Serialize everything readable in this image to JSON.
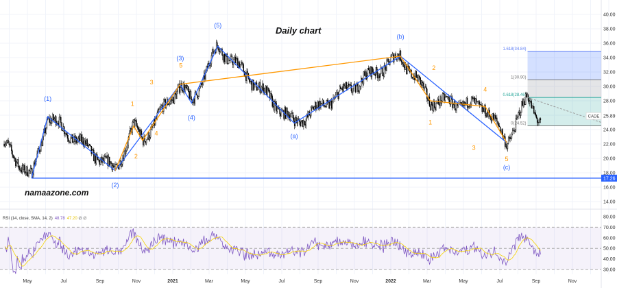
{
  "chart_data": {
    "type": "candlestick",
    "title": "Daily chart",
    "symbol": "CADE",
    "last_price": "25.89",
    "watermark": "namaazone.com",
    "y_ticks": [
      "40.00",
      "38.00",
      "36.00",
      "34.00",
      "32.00",
      "30.00",
      "28.00",
      "24.00",
      "22.00",
      "20.00",
      "18.00",
      "16.00",
      "14.00"
    ],
    "ylim": [
      12.5,
      41
    ],
    "x_ticks": [
      "May",
      "Jul",
      "Sep",
      "Nov",
      "2021",
      "Mar",
      "May",
      "Jul",
      "Sep",
      "Nov",
      "2022",
      "Mar",
      "May",
      "Jul",
      "Sep",
      "Nov"
    ],
    "price_pivots": [
      [
        "2020-03-23",
        22.0
      ],
      [
        "2020-05-08",
        17.3
      ],
      [
        "2020-06-04",
        25.8
      ],
      [
        "2020-09-25",
        18.3
      ],
      [
        "2020-10-26",
        24.5
      ],
      [
        "2020-11-10",
        22.5
      ],
      [
        "2021-01-12",
        30.3
      ],
      [
        "2021-01-31",
        27.7
      ],
      [
        "2021-03-16",
        35.6
      ],
      [
        "2021-07-22",
        24.9
      ],
      [
        "2022-01-16",
        34.2
      ],
      [
        "2022-03-07",
        28.0
      ],
      [
        "2022-06-07",
        27.2
      ],
      [
        "2022-07-13",
        22.2
      ],
      [
        "2022-08-17",
        28.5
      ],
      [
        "2022-09-08",
        25.0
      ]
    ],
    "support_line": {
      "value": 17.26,
      "label": "17.26",
      "color": "#2962ff"
    },
    "wave_lines": {
      "blue": [
        [
          "2020-05-08",
          17.3
        ],
        [
          "2020-06-04",
          25.8
        ],
        [
          "2020-09-25",
          18.3
        ],
        [
          "2021-01-12",
          30.3
        ],
        [
          "2021-01-31",
          27.7
        ],
        [
          "2021-03-16",
          35.6
        ],
        [
          "2021-07-22",
          24.9
        ],
        [
          "2022-01-16",
          34.2
        ],
        [
          "2022-07-13",
          22.2
        ]
      ],
      "orange": [
        [
          "2020-09-25",
          18.3
        ],
        [
          "2020-10-26",
          24.5
        ],
        [
          "2020-11-10",
          22.5
        ],
        [
          "2021-01-12",
          30.3
        ],
        [
          "2022-01-16",
          34.2
        ],
        [
          "2022-03-07",
          28.0
        ],
        [
          "2022-06-07",
          27.2
        ],
        [
          "2022-07-13",
          22.2
        ]
      ]
    },
    "wave_labels": [
      {
        "t": "(1)",
        "d": "2020-06-04",
        "p": 28.0,
        "c": "blue"
      },
      {
        "t": "(2)",
        "d": "2020-09-25",
        "p": 16.0,
        "c": "blue"
      },
      {
        "t": "(3)",
        "d": "2021-01-12",
        "p": 33.6,
        "c": "blue"
      },
      {
        "t": "(4)",
        "d": "2021-01-31",
        "p": 25.4,
        "c": "blue"
      },
      {
        "t": "(5)",
        "d": "2021-03-16",
        "p": 38.2,
        "c": "blue"
      },
      {
        "t": "(a)",
        "d": "2021-07-22",
        "p": 22.8,
        "c": "blue"
      },
      {
        "t": "(b)",
        "d": "2022-01-16",
        "p": 36.6,
        "c": "blue"
      },
      {
        "t": "(c)",
        "d": "2022-07-13",
        "p": 18.5,
        "c": "blue"
      },
      {
        "t": "1",
        "d": "2020-10-24",
        "p": 27.3,
        "c": "orange"
      },
      {
        "t": "2",
        "d": "2020-10-30",
        "p": 20.0,
        "c": "orange"
      },
      {
        "t": "3",
        "d": "2020-11-25",
        "p": 30.3,
        "c": "orange"
      },
      {
        "t": "4",
        "d": "2020-12-03",
        "p": 23.2,
        "c": "orange"
      },
      {
        "t": "5",
        "d": "2021-01-13",
        "p": 32.6,
        "c": "orange"
      },
      {
        "t": "2",
        "d": "2022-03-13",
        "p": 32.3,
        "c": "orange"
      },
      {
        "t": "1",
        "d": "2022-03-07",
        "p": 24.7,
        "c": "orange"
      },
      {
        "t": "3",
        "d": "2022-05-19",
        "p": 21.2,
        "c": "orange"
      },
      {
        "t": "4",
        "d": "2022-06-07",
        "p": 29.3,
        "c": "orange"
      },
      {
        "t": "5",
        "d": "2022-07-13",
        "p": 19.6,
        "c": "orange"
      }
    ],
    "fib_levels": [
      {
        "ratio": "1.618",
        "value": 34.84,
        "label": "1.618(34.84)",
        "color": "#5b7cf5"
      },
      {
        "ratio": "1",
        "value": 30.9,
        "label": "1(30.90)",
        "color": "#777777"
      },
      {
        "ratio": "0.618",
        "value": 28.46,
        "label": "0.618(28.46)",
        "color": "#26a69a"
      },
      {
        "ratio": "0",
        "value": 24.52,
        "label": "0(24.52)",
        "color": "#777777"
      }
    ],
    "rsi": {
      "legend": "RSI (14, close, SMA, 14, 2)",
      "value": "48.78",
      "sma_value": "47.20",
      "extra": "∅ ∅",
      "y_ticks": [
        "80.00",
        "70.00",
        "60.00",
        "50.00",
        "40.00",
        "30.00"
      ],
      "bands": [
        70,
        30
      ],
      "line_color": "#7e57c2",
      "sma_color": "#f5d300"
    },
    "grid": true
  }
}
